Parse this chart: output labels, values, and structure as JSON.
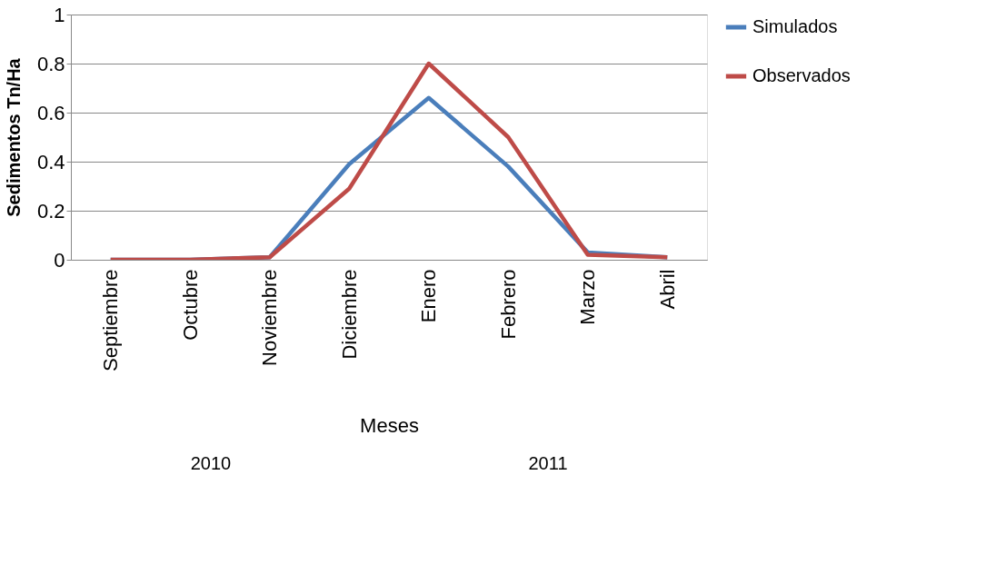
{
  "chart_data": {
    "type": "line",
    "xlabel": "Meses",
    "ylabel": "Sedimentos Tn/Ha",
    "categories": [
      "Septiembre",
      "Octubre",
      "Noviembre",
      "Diciembre",
      "Enero",
      "Febrero",
      "Marzo",
      "Abril"
    ],
    "series": [
      {
        "name": "Simulados",
        "color": "#4a7ebb",
        "values": [
          0,
          0,
          0.01,
          0.39,
          0.66,
          0.38,
          0.03,
          0.01
        ]
      },
      {
        "name": "Observados",
        "color": "#be4b48",
        "values": [
          0,
          0,
          0.01,
          0.29,
          0.8,
          0.5,
          0.02,
          0.01
        ]
      }
    ],
    "ylim": [
      0,
      1
    ],
    "yticks": [
      0,
      0.2,
      0.4,
      0.6,
      0.8,
      1
    ],
    "grid": "y",
    "legend": "right",
    "marker": "none",
    "line_style": "solid",
    "annotations": [
      "2010",
      "2011"
    ]
  }
}
